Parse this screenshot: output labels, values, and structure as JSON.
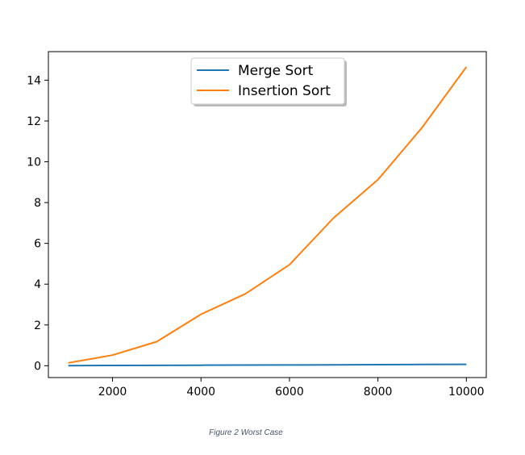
{
  "chart_data": {
    "type": "line",
    "x": [
      1000,
      2000,
      3000,
      4000,
      5000,
      6000,
      7000,
      8000,
      9000,
      10000
    ],
    "series": [
      {
        "name": "Merge Sort",
        "color": "#1f77b4",
        "values": [
          0.005,
          0.012,
          0.018,
          0.025,
          0.032,
          0.039,
          0.046,
          0.053,
          0.06,
          0.067
        ]
      },
      {
        "name": "Insertion Sort",
        "color": "#ff7f0e",
        "values": [
          0.14,
          0.52,
          1.18,
          2.52,
          3.52,
          4.95,
          7.25,
          9.12,
          11.68,
          14.65
        ]
      }
    ],
    "xticks": [
      2000,
      4000,
      6000,
      8000,
      10000
    ],
    "yticks": [
      0,
      2,
      4,
      6,
      8,
      10,
      12,
      14
    ],
    "xlim": [
      550,
      10450
    ],
    "ylim": [
      -0.58,
      15.4
    ],
    "grid": false,
    "legend_position": "top-center"
  },
  "caption": "Figure 2 Worst Case"
}
